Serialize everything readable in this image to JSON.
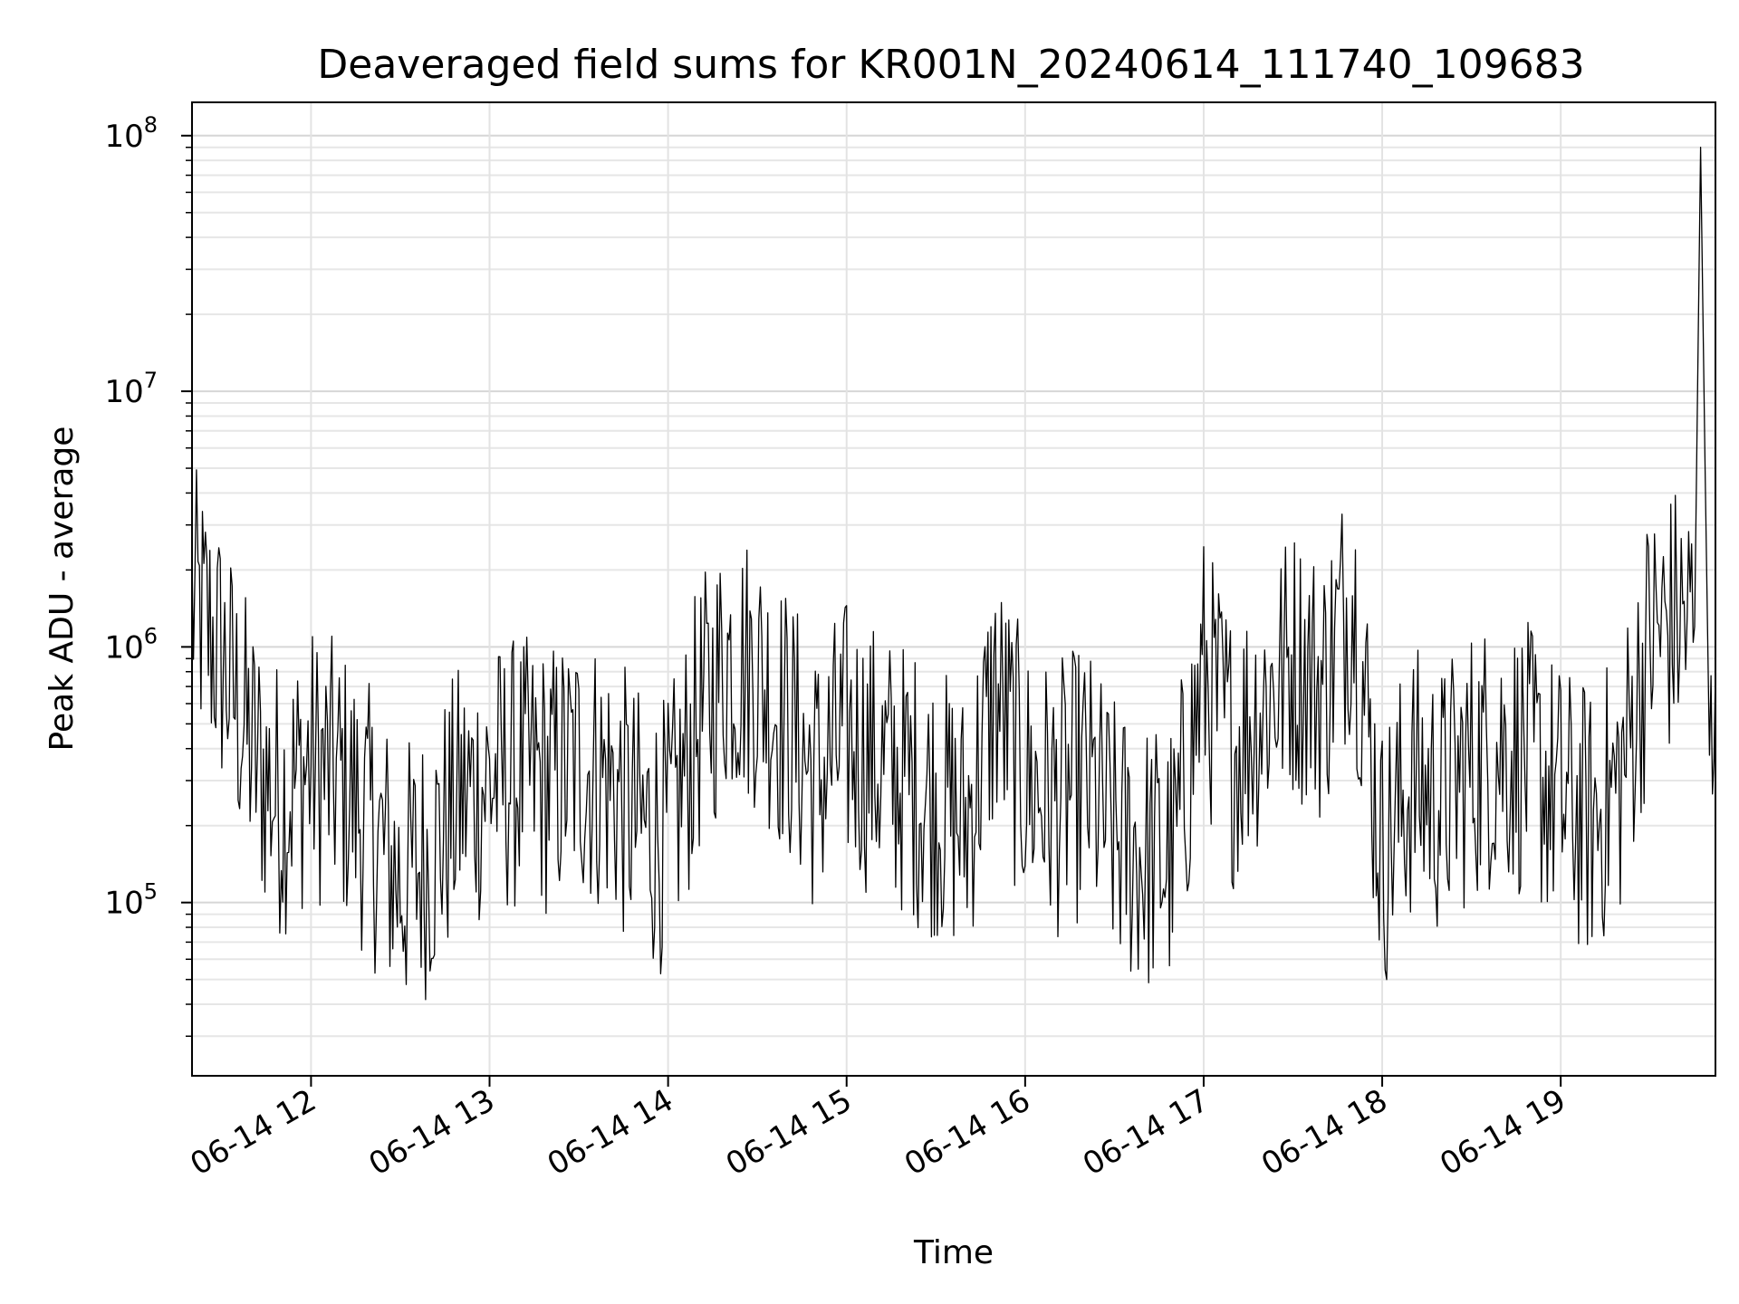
{
  "chart_data": {
    "type": "line",
    "title": "Deaveraged field sums for KR001N_20240614_111740_109683",
    "xlabel": "Time",
    "ylabel": "Peak ADU - average",
    "yscale": "log",
    "ylim": [
      21000,
      135000000
    ],
    "xlim": [
      "2024-06-14 11:20",
      "2024-06-14 19:52"
    ],
    "grid": true,
    "line_color": "#000000",
    "x_ticks": [
      {
        "label": "06-14 12",
        "value": "2024-06-14 12:00"
      },
      {
        "label": "06-14 13",
        "value": "2024-06-14 13:00"
      },
      {
        "label": "06-14 14",
        "value": "2024-06-14 14:00"
      },
      {
        "label": "06-14 15",
        "value": "2024-06-14 15:00"
      },
      {
        "label": "06-14 16",
        "value": "2024-06-14 16:00"
      },
      {
        "label": "06-14 17",
        "value": "2024-06-14 17:00"
      },
      {
        "label": "06-14 18",
        "value": "2024-06-14 18:00"
      },
      {
        "label": "06-14 19",
        "value": "2024-06-14 19:00"
      }
    ],
    "y_ticks": [
      {
        "base": "10",
        "exp": "5",
        "value": 100000
      },
      {
        "base": "10",
        "exp": "6",
        "value": 1000000
      },
      {
        "base": "10",
        "exp": "7",
        "value": 10000000
      },
      {
        "base": "10",
        "exp": "8",
        "value": 100000000
      }
    ],
    "series": [
      {
        "x": [
          "2024-06-14 11:20",
          "2024-06-14 11:25",
          "2024-06-14 11:30",
          "2024-06-14 11:35",
          "2024-06-14 11:40",
          "2024-06-14 11:45",
          "2024-06-14 11:50",
          "2024-06-14 11:55",
          "2024-06-14 12:00",
          "2024-06-14 12:10",
          "2024-06-14 12:20",
          "2024-06-14 12:30",
          "2024-06-14 12:40",
          "2024-06-14 12:50",
          "2024-06-14 13:00",
          "2024-06-14 13:10",
          "2024-06-14 13:20",
          "2024-06-14 13:30",
          "2024-06-14 13:40",
          "2024-06-14 13:50",
          "2024-06-14 14:00",
          "2024-06-14 14:10",
          "2024-06-14 14:20",
          "2024-06-14 14:30",
          "2024-06-14 14:40",
          "2024-06-14 14:50",
          "2024-06-14 15:00",
          "2024-06-14 15:10",
          "2024-06-14 15:20",
          "2024-06-14 15:30",
          "2024-06-14 15:40",
          "2024-06-14 15:50",
          "2024-06-14 16:00",
          "2024-06-14 16:10",
          "2024-06-14 16:20",
          "2024-06-14 16:30",
          "2024-06-14 16:40",
          "2024-06-14 16:50",
          "2024-06-14 17:00",
          "2024-06-14 17:10",
          "2024-06-14 17:20",
          "2024-06-14 17:30",
          "2024-06-14 17:40",
          "2024-06-14 17:50",
          "2024-06-14 18:00",
          "2024-06-14 18:10",
          "2024-06-14 18:20",
          "2024-06-14 18:30",
          "2024-06-14 18:40",
          "2024-06-14 18:50",
          "2024-06-14 19:00",
          "2024-06-14 19:10",
          "2024-06-14 19:20",
          "2024-06-14 19:30",
          "2024-06-14 19:40",
          "2024-06-14 19:45",
          "2024-06-14 19:47",
          "2024-06-14 19:50",
          "2024-06-14 19:52"
        ],
        "y": [
          1500000,
          1200000,
          900000,
          600000,
          400000,
          300000,
          250000,
          300000,
          350000,
          300000,
          200000,
          120000,
          150000,
          250000,
          300000,
          320000,
          300000,
          350000,
          300000,
          200000,
          180000,
          500000,
          900000,
          800000,
          500000,
          300000,
          450000,
          350000,
          300000,
          250000,
          200000,
          650000,
          300000,
          250000,
          300000,
          180000,
          150000,
          150000,
          800000,
          400000,
          600000,
          900000,
          700000,
          1700000,
          150000,
          300000,
          250000,
          350000,
          400000,
          350000,
          250000,
          200000,
          300000,
          1100000,
          1300000,
          1200000,
          90000000,
          300000,
          800000
        ]
      }
    ]
  }
}
